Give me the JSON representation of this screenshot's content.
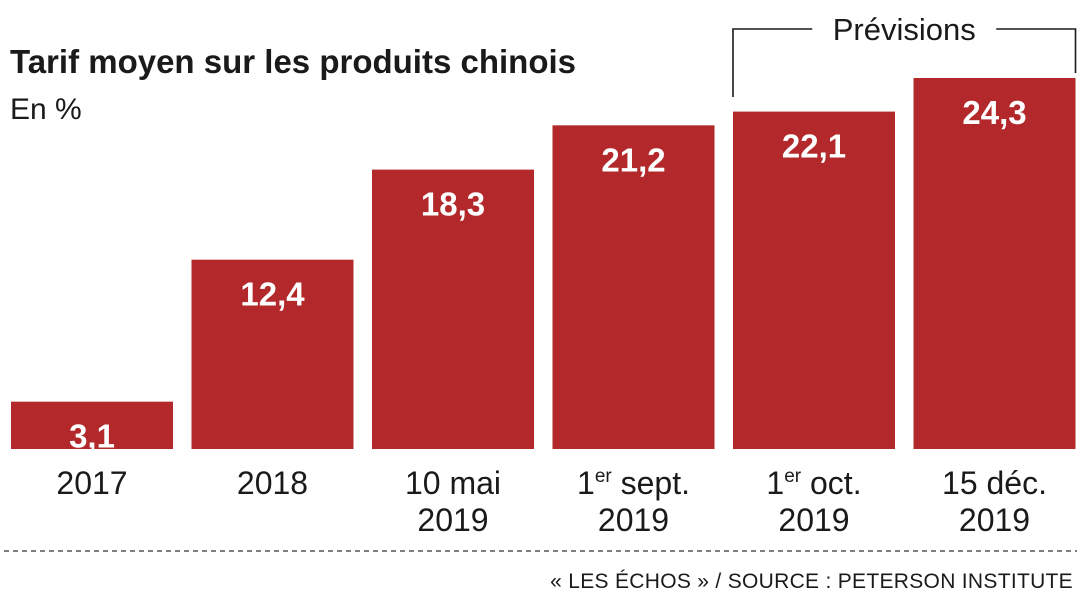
{
  "chart_data": {
    "type": "bar",
    "title": "Tarif moyen sur les produits chinois",
    "subtitle": "En %",
    "categories": [
      {
        "line1": "2017",
        "line2": "",
        "sup": "",
        "line1_rest": ""
      },
      {
        "line1": "2018",
        "line2": "",
        "sup": "",
        "line1_rest": ""
      },
      {
        "line1": "10 mai",
        "line2": "2019",
        "sup": "",
        "line1_rest": ""
      },
      {
        "line1": "1",
        "sup": "er",
        "line1_rest": " sept.",
        "line2": "2019"
      },
      {
        "line1": "1",
        "sup": "er",
        "line1_rest": " oct.",
        "line2": "2019"
      },
      {
        "line1": "15 déc.",
        "line2": "2019",
        "sup": "",
        "line1_rest": ""
      }
    ],
    "values": [
      3.1,
      12.4,
      18.3,
      21.2,
      22.1,
      24.3
    ],
    "value_labels": [
      "3,1",
      "12,4",
      "18,3",
      "21,2",
      "22,1",
      "24,3"
    ],
    "ylim": [
      0,
      24.3
    ],
    "grid": false,
    "bar_color": "#b3282a",
    "annotation": {
      "text": "Prévisions",
      "covers_categories": [
        4,
        5
      ]
    },
    "source": "« LES ÉCHOS » / SOURCE : PETERSON INSTITUTE"
  }
}
